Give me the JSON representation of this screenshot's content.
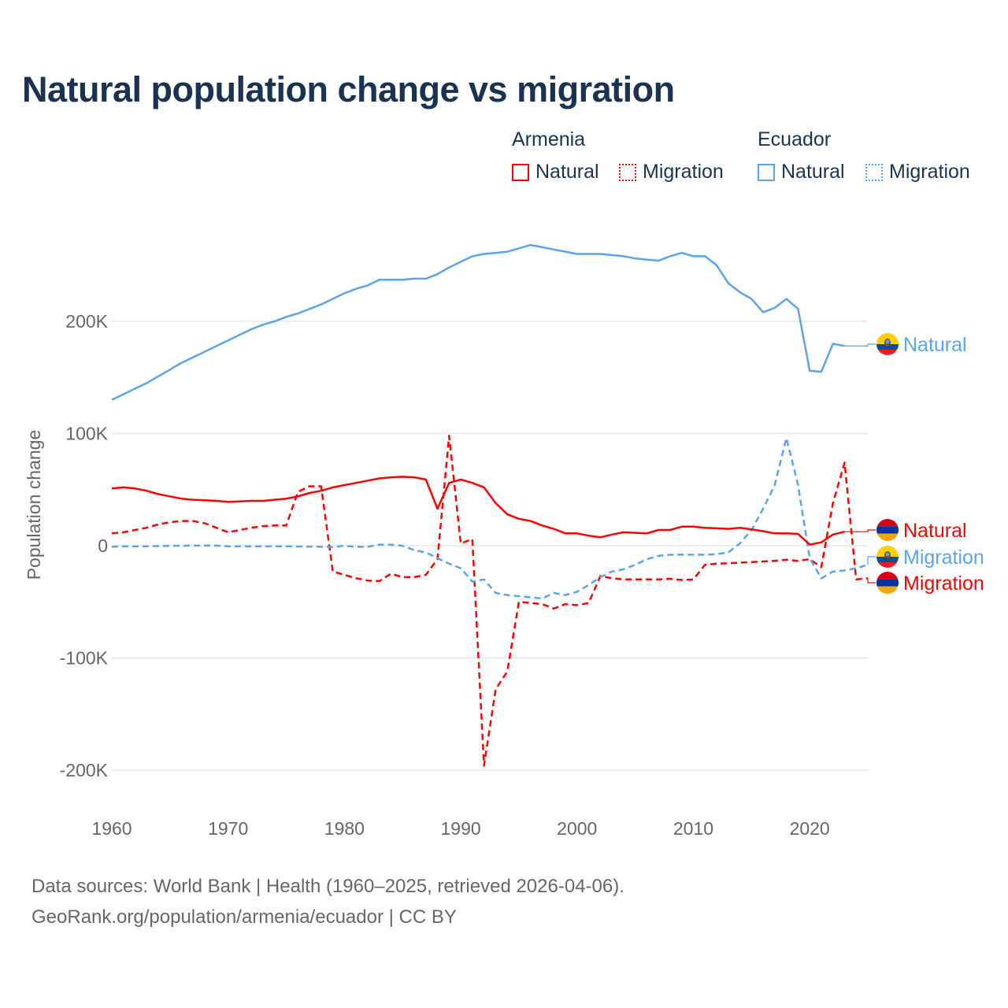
{
  "title": "Natural population change vs migration",
  "legend": {
    "groups": [
      {
        "name": "Armenia",
        "color": "#ff0000",
        "items": [
          "Natural",
          "Migration"
        ]
      },
      {
        "name": "Ecuador",
        "color": "#5ba4ea",
        "items": [
          "Natural",
          "Migration"
        ]
      }
    ]
  },
  "footer": {
    "line1": "Data sources: World Bank | Health (1960–2025, retrieved 2026-04-06).",
    "line2": "GeoRank.org/population/armenia/ecuador | CC BY"
  },
  "chart_data": {
    "type": "line",
    "title": "Natural population change vs migration",
    "xlabel": "",
    "ylabel": "Population change",
    "xlim": [
      1960,
      2025
    ],
    "ylim": [
      -200000,
      200000
    ],
    "x_ticks": [
      1960,
      1970,
      1980,
      1990,
      2000,
      2010,
      2020
    ],
    "y_ticks": [
      {
        "v": 200000,
        "label": "200K"
      },
      {
        "v": 100000,
        "label": "100K"
      },
      {
        "v": 0,
        "label": "0"
      },
      {
        "v": -100000,
        "label": "-100K"
      },
      {
        "v": -200000,
        "label": "-200K"
      }
    ],
    "grid": true,
    "legend_position": "top-right",
    "series": [
      {
        "name": "Ecuador Natural",
        "country": "Ecuador",
        "kind": "Natural",
        "label": "Natural",
        "color": "#5ba4ea",
        "dashed": false,
        "start": 1960,
        "values": [
          130,
          135,
          140,
          145,
          151,
          157,
          163,
          168,
          173,
          178,
          183,
          188,
          193,
          197,
          200,
          204,
          207,
          211,
          215,
          220,
          225,
          229,
          232,
          237,
          237,
          237,
          238,
          238,
          242,
          248,
          253,
          258,
          260,
          261,
          262,
          265,
          268,
          266,
          264,
          262,
          260,
          260,
          260,
          259,
          258,
          256,
          255,
          254,
          258,
          261,
          258,
          258,
          250,
          234,
          226,
          220,
          208,
          212,
          220,
          211,
          156,
          155,
          180,
          178
        ]
      },
      {
        "name": "Armenia Natural",
        "country": "Armenia",
        "kind": "Natural",
        "label": "Natural",
        "color": "#ff0000",
        "dashed": false,
        "start": 1960,
        "values": [
          51,
          52,
          51,
          49,
          46,
          44,
          42,
          41,
          40.5,
          40,
          39,
          39.5,
          40,
          40,
          41,
          42,
          44,
          47,
          49,
          52,
          54,
          56,
          58,
          60,
          61,
          61.5,
          61,
          59,
          33,
          56,
          59,
          56,
          52,
          38,
          28,
          24,
          22,
          18,
          15,
          11,
          11,
          9,
          7.5,
          10,
          12,
          11.5,
          11,
          14,
          14,
          17,
          17,
          16,
          15.5,
          15,
          16,
          14.5,
          13,
          11,
          11,
          10.5,
          1,
          3,
          10,
          12.5
        ]
      },
      {
        "name": "Ecuador Migration",
        "country": "Ecuador",
        "kind": "Migration",
        "label": "Migration",
        "color": "#5ba4ea",
        "dashed": true,
        "start": 1960,
        "values": [
          -1,
          -0.5,
          -0.5,
          -0.5,
          -0.3,
          0,
          0,
          0.2,
          0.2,
          0.2,
          -0.5,
          -0.5,
          -0.5,
          -0.5,
          -0.5,
          -0.5,
          -0.7,
          -0.8,
          -1,
          -1.2,
          0,
          -1,
          -1,
          1,
          1,
          0,
          -4,
          -6,
          -11,
          -16,
          -20,
          -32,
          -30,
          -42,
          -44,
          -45,
          -46,
          -47,
          -42,
          -44,
          -41,
          -35,
          -28,
          -23,
          -21,
          -17,
          -12,
          -9,
          -8,
          -8,
          -8,
          -8,
          -7.5,
          -6,
          2,
          14,
          33,
          54,
          96,
          54,
          -11,
          -29,
          -23,
          -22,
          -20,
          -17
        ]
      },
      {
        "name": "Armenia Migration",
        "country": "Armenia",
        "kind": "Migration",
        "label": "Migration",
        "color": "#ff0000",
        "dashed": true,
        "start": 1960,
        "values": [
          11,
          12,
          14,
          16,
          19,
          21,
          22,
          22,
          20,
          16,
          12,
          14,
          16,
          17.5,
          18,
          18,
          48,
          53,
          53,
          -23,
          -26,
          -29,
          -31,
          -31.5,
          -25,
          -28,
          -28,
          -26,
          -12,
          98,
          2,
          6,
          -196,
          -128,
          -112,
          -50,
          -51,
          -52,
          -56,
          -52,
          -53,
          -51,
          -27,
          -29,
          -30,
          -30,
          -30,
          -30,
          -29.5,
          -30.5,
          -30,
          -17,
          -16,
          -15.5,
          -15,
          -14.5,
          -14,
          -13.5,
          -12.5,
          -13.5,
          -12,
          -19,
          38,
          74,
          -30,
          -29
        ]
      }
    ],
    "value_unit_multiplier": 1000
  }
}
